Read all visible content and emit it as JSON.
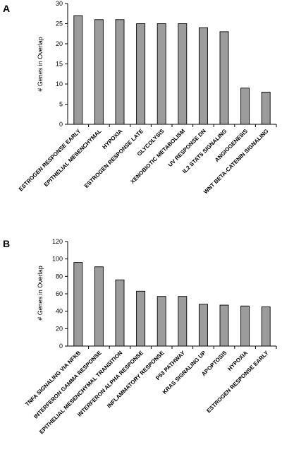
{
  "chart_data": [
    {
      "panel": "A",
      "type": "bar",
      "ylabel": "# Genes in Overlap",
      "ylim": [
        0,
        30
      ],
      "yticks": [
        0,
        5,
        10,
        15,
        20,
        25,
        30
      ],
      "categories": [
        "ESTROGEN RESPONSE EARLY",
        "EPITHELIAL MESENCHYMAL",
        "HYPOXIA",
        "ESTROGEN RESPONSE LATE",
        "GLYCOLYSIS",
        "XENOBIOTIC METABOLISM",
        "UV RESPONSE DN",
        "IL2 STAT5 SIGNALING",
        "ANGIOGENESIS",
        "WNT BETA-CATENIN SIGNALING"
      ],
      "values": [
        27,
        26,
        26,
        25,
        25,
        25,
        24,
        23,
        9,
        8
      ],
      "grid": false,
      "bar_color": "#9c9c9c"
    },
    {
      "panel": "B",
      "type": "bar",
      "ylabel": "# Genes in Overlap",
      "ylim": [
        0,
        120
      ],
      "yticks": [
        0,
        20,
        40,
        60,
        80,
        100,
        120
      ],
      "categories": [
        "TNFA SIGNALING VIA NFKB",
        "INTERFERON GAMMA RESPONSE",
        "EPITHELIAL MESENCHYMAL TRANSITION",
        "INTERFERON ALPHA RESPONSE",
        "INFLAMMATORY RESPONSE",
        "P53 PATHWAY",
        "KRAS SIGNALING UP",
        "APOPTOSIS",
        "HYPOXIA",
        "ESTROGEN RESPONSE EARLY"
      ],
      "values": [
        96,
        91,
        76,
        63,
        57,
        57,
        48,
        47,
        46,
        45
      ],
      "grid": false,
      "bar_color": "#9c9c9c"
    }
  ]
}
